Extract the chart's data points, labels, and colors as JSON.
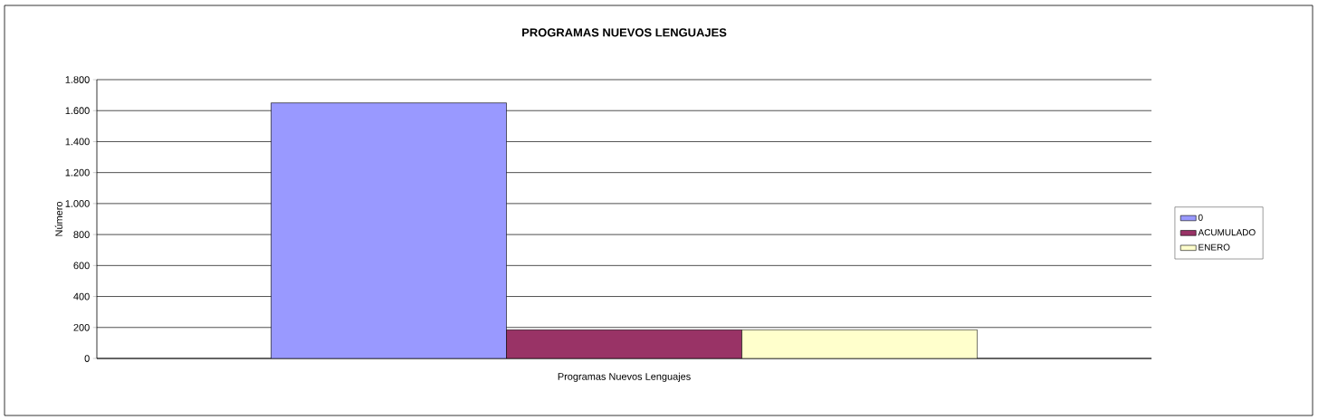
{
  "chart_data": {
    "type": "bar",
    "title": "PROGRAMAS  NUEVOS LENGUAJES",
    "ylabel": "Número",
    "categories": [
      "Programas Nuevos Lenguajes"
    ],
    "series": [
      {
        "name": "0",
        "color": "#9999ff",
        "values": [
          1650
        ]
      },
      {
        "name": "ACUMULADO",
        "color": "#993366",
        "values": [
          185
        ]
      },
      {
        "name": "ENERO",
        "color": "#ffffcc",
        "values": [
          185
        ]
      }
    ],
    "ylim": [
      0,
      1800
    ],
    "yticks": [
      0,
      200,
      400,
      600,
      800,
      {
        "value": 1000,
        "label": "1.000"
      },
      {
        "value": 1200,
        "label": "1.200"
      },
      {
        "value": 1400,
        "label": "1.400"
      },
      {
        "value": 1600,
        "label": "1.600"
      },
      {
        "value": 1800,
        "label": "1.800"
      }
    ],
    "grid": "y",
    "legend": "right"
  }
}
